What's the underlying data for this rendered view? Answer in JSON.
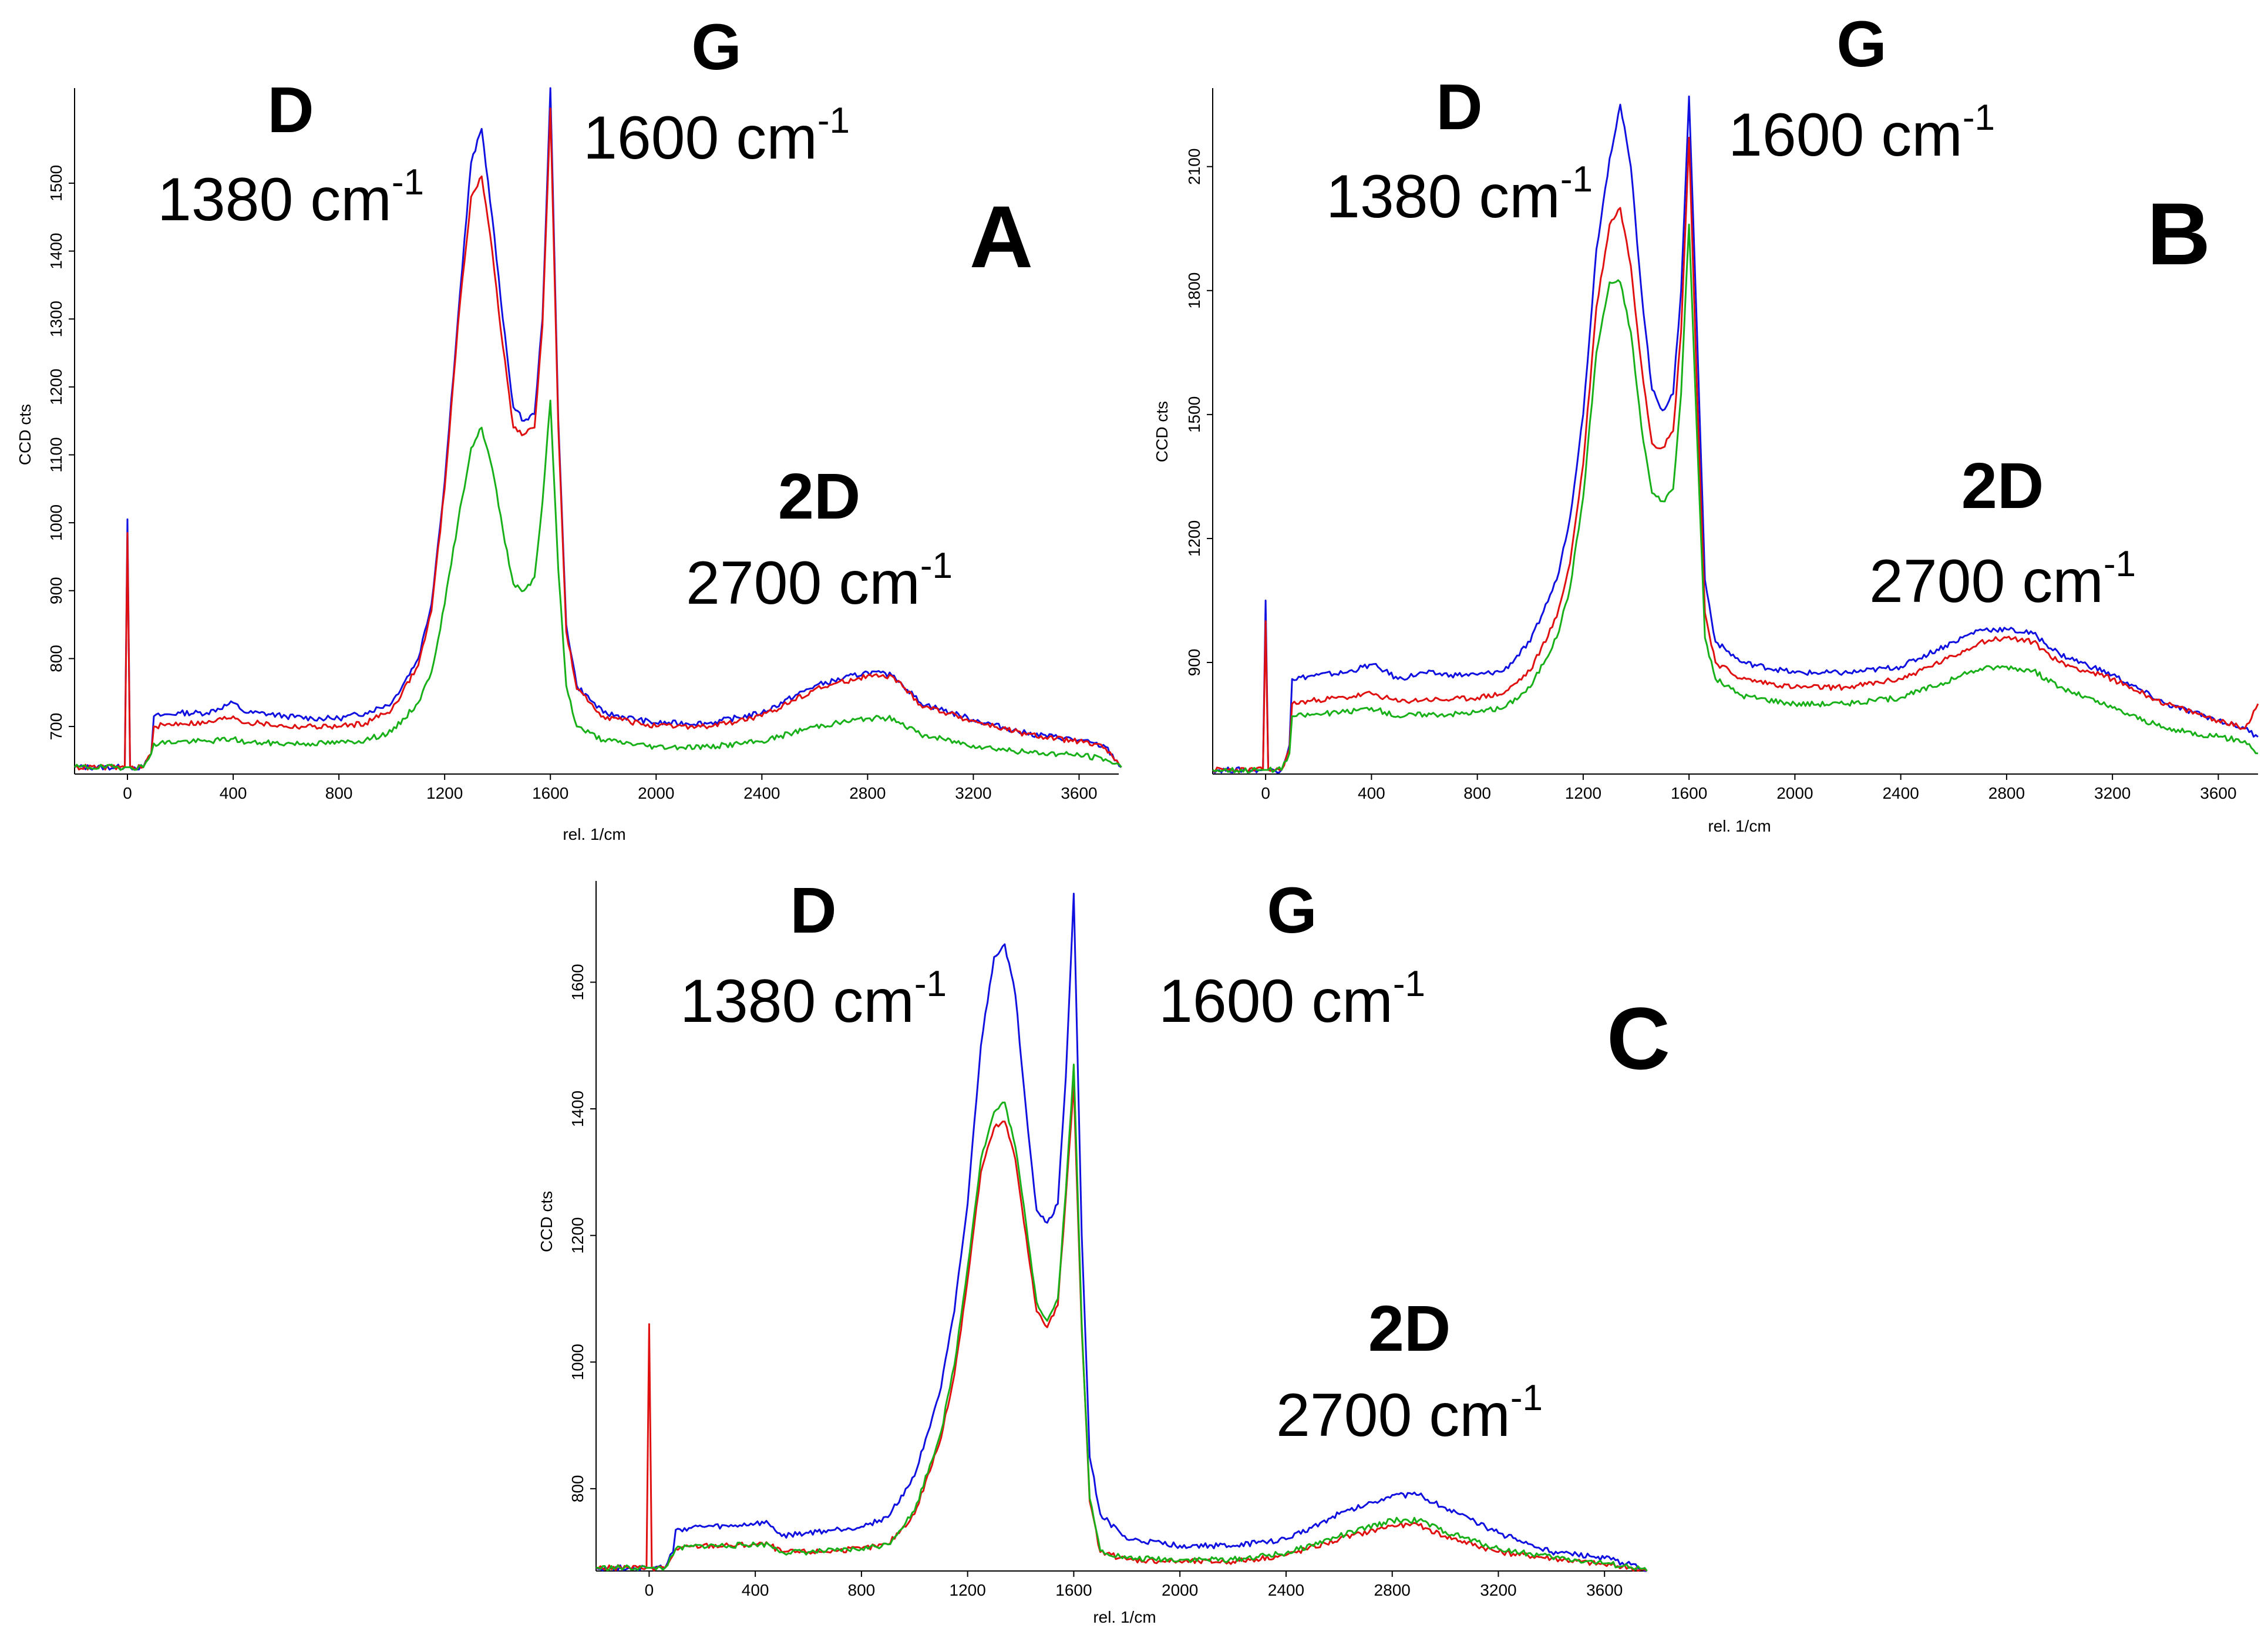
{
  "chart_data": [
    {
      "type": "line",
      "panel_label": "A",
      "xlabel": "rel. 1/cm",
      "ylabel": "CCD cts",
      "xlim": [
        -200,
        3750
      ],
      "ylim": [
        630,
        1640
      ],
      "xticks": [
        0,
        400,
        800,
        1200,
        1600,
        2000,
        2400,
        2800,
        3200,
        3600
      ],
      "yticks": [
        700,
        800,
        900,
        1000,
        1100,
        1200,
        1300,
        1400,
        1500
      ],
      "peaks": [
        {
          "name": "D",
          "position": "1380 cm",
          "sup": "-1"
        },
        {
          "name": "G",
          "position": "1600 cm",
          "sup": "-1"
        },
        {
          "name": "2D",
          "position": "2700 cm",
          "sup": "-1"
        }
      ],
      "series": [
        {
          "name": "blue",
          "color": "#1010e0",
          "x": [
            -200,
            -10,
            0,
            10,
            60,
            90,
            100,
            200,
            300,
            400,
            450,
            500,
            600,
            700,
            800,
            900,
            1000,
            1100,
            1150,
            1200,
            1250,
            1300,
            1340,
            1380,
            1420,
            1460,
            1500,
            1540,
            1570,
            1600,
            1630,
            1660,
            1700,
            1800,
            2000,
            2200,
            2400,
            2600,
            2800,
            2900,
            3000,
            3200,
            3400,
            3600,
            3700,
            3760
          ],
          "y": [
            640,
            640,
            1005,
            640,
            640,
            660,
            715,
            720,
            720,
            735,
            720,
            720,
            715,
            712,
            712,
            720,
            735,
            800,
            880,
            1060,
            1300,
            1530,
            1580,
            1450,
            1300,
            1170,
            1150,
            1160,
            1300,
            1640,
            1150,
            850,
            760,
            720,
            705,
            705,
            720,
            760,
            780,
            775,
            735,
            710,
            690,
            680,
            670,
            640
          ]
        },
        {
          "name": "red",
          "color": "#e01010",
          "x": [
            -200,
            -10,
            0,
            10,
            60,
            90,
            100,
            200,
            300,
            400,
            450,
            500,
            600,
            700,
            800,
            900,
            1000,
            1100,
            1150,
            1200,
            1250,
            1300,
            1340,
            1380,
            1420,
            1460,
            1500,
            1540,
            1570,
            1600,
            1630,
            1660,
            1700,
            1800,
            2000,
            2200,
            2400,
            2600,
            2800,
            2900,
            3000,
            3200,
            3400,
            3600,
            3700,
            3760
          ],
          "y": [
            640,
            640,
            985,
            640,
            640,
            660,
            700,
            705,
            705,
            715,
            705,
            705,
            700,
            700,
            700,
            705,
            725,
            790,
            870,
            1050,
            1290,
            1480,
            1510,
            1400,
            1260,
            1140,
            1130,
            1140,
            1290,
            1610,
            1140,
            840,
            755,
            715,
            700,
            700,
            715,
            755,
            775,
            772,
            732,
            708,
            688,
            678,
            668,
            640
          ]
        },
        {
          "name": "green",
          "color": "#18b018",
          "x": [
            -200,
            -10,
            0,
            10,
            60,
            90,
            100,
            200,
            300,
            400,
            450,
            500,
            600,
            700,
            800,
            900,
            1000,
            1100,
            1150,
            1200,
            1250,
            1300,
            1340,
            1380,
            1420,
            1460,
            1500,
            1540,
            1570,
            1600,
            1630,
            1660,
            1700,
            1800,
            2000,
            2200,
            2400,
            2600,
            2800,
            2900,
            3000,
            3200,
            3400,
            3600,
            3700,
            3760
          ],
          "y": [
            640,
            640,
            640,
            640,
            640,
            660,
            675,
            678,
            678,
            682,
            676,
            676,
            675,
            675,
            676,
            680,
            692,
            735,
            780,
            880,
            1000,
            1110,
            1140,
            1080,
            990,
            910,
            900,
            920,
            1030,
            1180,
            930,
            760,
            700,
            680,
            670,
            670,
            678,
            700,
            712,
            712,
            688,
            672,
            662,
            658,
            652,
            640
          ]
        }
      ]
    },
    {
      "type": "line",
      "panel_label": "B",
      "xlabel": "rel. 1/cm",
      "ylabel": "CCD cts",
      "xlim": [
        -200,
        3750
      ],
      "ylim": [
        630,
        2290
      ],
      "xticks": [
        0,
        400,
        800,
        1200,
        1600,
        2000,
        2400,
        2800,
        3200,
        3600
      ],
      "yticks": [
        900,
        1200,
        1500,
        1800,
        2100
      ],
      "peaks": [
        {
          "name": "D",
          "position": "1380 cm",
          "sup": "-1"
        },
        {
          "name": "G",
          "position": "1600 cm",
          "sup": "-1"
        },
        {
          "name": "2D",
          "position": "2700 cm",
          "sup": "-1"
        }
      ],
      "series": [
        {
          "name": "blue",
          "color": "#1010e0",
          "x": [
            -200,
            -10,
            0,
            10,
            60,
            90,
            100,
            200,
            300,
            400,
            450,
            500,
            600,
            700,
            800,
            900,
            1000,
            1100,
            1150,
            1200,
            1250,
            1300,
            1340,
            1380,
            1420,
            1460,
            1500,
            1540,
            1570,
            1600,
            1630,
            1660,
            1700,
            1800,
            2000,
            2200,
            2400,
            2600,
            2700,
            2800,
            2900,
            3000,
            3200,
            3400,
            3600,
            3700,
            3750
          ],
          "y": [
            640,
            640,
            1050,
            640,
            640,
            700,
            860,
            870,
            875,
            895,
            880,
            860,
            875,
            870,
            870,
            880,
            950,
            1100,
            1250,
            1500,
            1900,
            2120,
            2250,
            2100,
            1800,
            1560,
            1510,
            1550,
            1800,
            2270,
            1700,
            1100,
            950,
            900,
            875,
            875,
            890,
            950,
            980,
            980,
            970,
            920,
            870,
            800,
            760,
            740,
            720
          ]
        },
        {
          "name": "red",
          "color": "#e01010",
          "x": [
            -200,
            -10,
            0,
            10,
            60,
            90,
            100,
            200,
            300,
            400,
            450,
            500,
            600,
            700,
            800,
            900,
            1000,
            1100,
            1150,
            1200,
            1250,
            1300,
            1340,
            1380,
            1420,
            1460,
            1500,
            1540,
            1570,
            1600,
            1630,
            1660,
            1700,
            1800,
            2000,
            2200,
            2400,
            2600,
            2700,
            2800,
            2900,
            3000,
            3200,
            3400,
            3600,
            3700,
            3750
          ],
          "y": [
            640,
            640,
            1000,
            640,
            640,
            690,
            800,
            810,
            815,
            825,
            815,
            805,
            810,
            810,
            815,
            825,
            880,
            1010,
            1140,
            1380,
            1760,
            1960,
            2000,
            1860,
            1620,
            1430,
            1420,
            1460,
            1700,
            2170,
            1560,
            1020,
            900,
            860,
            840,
            840,
            860,
            915,
            950,
            960,
            950,
            900,
            860,
            800,
            760,
            740,
            800
          ]
        },
        {
          "name": "green",
          "color": "#18b018",
          "x": [
            -200,
            -10,
            0,
            10,
            60,
            90,
            100,
            200,
            300,
            400,
            450,
            500,
            600,
            700,
            800,
            900,
            1000,
            1100,
            1150,
            1200,
            1250,
            1300,
            1340,
            1380,
            1420,
            1460,
            1500,
            1540,
            1570,
            1600,
            1630,
            1660,
            1700,
            1800,
            2000,
            2200,
            2400,
            2600,
            2700,
            2800,
            2900,
            3000,
            3200,
            3400,
            3600,
            3700,
            3750
          ],
          "y": [
            640,
            640,
            640,
            640,
            640,
            680,
            770,
            775,
            780,
            790,
            780,
            770,
            775,
            775,
            780,
            790,
            840,
            960,
            1080,
            1300,
            1650,
            1820,
            1820,
            1700,
            1470,
            1310,
            1290,
            1320,
            1550,
            1960,
            1450,
            960,
            860,
            820,
            800,
            800,
            815,
            860,
            885,
            890,
            880,
            840,
            790,
            740,
            720,
            710,
            680
          ]
        }
      ]
    },
    {
      "type": "line",
      "panel_label": "C",
      "xlabel": "rel. 1/cm",
      "ylabel": "CCD cts",
      "xlim": [
        -200,
        3750
      ],
      "ylim": [
        670,
        1760
      ],
      "xticks": [
        0,
        400,
        800,
        1200,
        1600,
        2000,
        2400,
        2800,
        3200,
        3600
      ],
      "yticks": [
        800,
        1000,
        1200,
        1400,
        1600
      ],
      "peaks": [
        {
          "name": "D",
          "position": "1380 cm",
          "sup": "-1"
        },
        {
          "name": "G",
          "position": "1600 cm",
          "sup": "-1"
        },
        {
          "name": "2D",
          "position": "2700 cm",
          "sup": "-1"
        }
      ],
      "series": [
        {
          "name": "blue",
          "color": "#1010e0",
          "x": [
            -200,
            -10,
            0,
            10,
            60,
            90,
            100,
            200,
            300,
            400,
            450,
            500,
            600,
            700,
            800,
            900,
            1000,
            1100,
            1150,
            1200,
            1250,
            1300,
            1340,
            1380,
            1420,
            1460,
            1500,
            1540,
            1570,
            1600,
            1630,
            1660,
            1700,
            1800,
            2000,
            2200,
            2400,
            2600,
            2800,
            2900,
            3000,
            3200,
            3400,
            3600,
            3700,
            3760
          ],
          "y": [
            675,
            675,
            675,
            675,
            675,
            700,
            735,
            740,
            740,
            745,
            745,
            725,
            730,
            735,
            740,
            755,
            820,
            960,
            1080,
            1250,
            1500,
            1640,
            1660,
            1580,
            1400,
            1240,
            1220,
            1250,
            1450,
            1740,
            1200,
            850,
            760,
            720,
            710,
            710,
            720,
            760,
            790,
            790,
            770,
            730,
            700,
            690,
            680,
            670
          ]
        },
        {
          "name": "red",
          "color": "#e01010",
          "x": [
            -200,
            -10,
            0,
            10,
            60,
            90,
            100,
            200,
            300,
            400,
            450,
            500,
            600,
            700,
            800,
            900,
            1000,
            1100,
            1150,
            1200,
            1250,
            1300,
            1340,
            1380,
            1420,
            1460,
            1500,
            1540,
            1570,
            1600,
            1630,
            1660,
            1700,
            1800,
            2000,
            2200,
            2400,
            2600,
            2800,
            2900,
            3000,
            3200,
            3400,
            3600,
            3700,
            3760
          ],
          "y": [
            675,
            675,
            1060,
            675,
            675,
            695,
            705,
            710,
            710,
            712,
            712,
            700,
            700,
            702,
            705,
            712,
            760,
            880,
            980,
            1130,
            1300,
            1370,
            1380,
            1320,
            1200,
            1080,
            1055,
            1090,
            1260,
            1440,
            1050,
            780,
            700,
            688,
            685,
            685,
            695,
            720,
            742,
            742,
            725,
            700,
            690,
            680,
            675,
            670
          ]
        },
        {
          "name": "green",
          "color": "#18b018",
          "x": [
            -200,
            -10,
            0,
            10,
            60,
            90,
            100,
            200,
            300,
            400,
            450,
            500,
            600,
            700,
            800,
            900,
            1000,
            1100,
            1150,
            1200,
            1250,
            1300,
            1340,
            1380,
            1420,
            1460,
            1500,
            1540,
            1570,
            1600,
            1630,
            1660,
            1700,
            1800,
            2000,
            2200,
            2400,
            2600,
            2800,
            2900,
            3000,
            3200,
            3400,
            3600,
            3700,
            3760
          ],
          "y": [
            675,
            675,
            675,
            675,
            675,
            695,
            705,
            710,
            710,
            712,
            712,
            700,
            700,
            702,
            705,
            712,
            765,
            890,
            995,
            1150,
            1320,
            1395,
            1410,
            1340,
            1220,
            1095,
            1065,
            1100,
            1270,
            1470,
            1060,
            785,
            702,
            690,
            688,
            688,
            698,
            725,
            750,
            750,
            732,
            705,
            692,
            682,
            676,
            670
          ]
        }
      ]
    }
  ]
}
